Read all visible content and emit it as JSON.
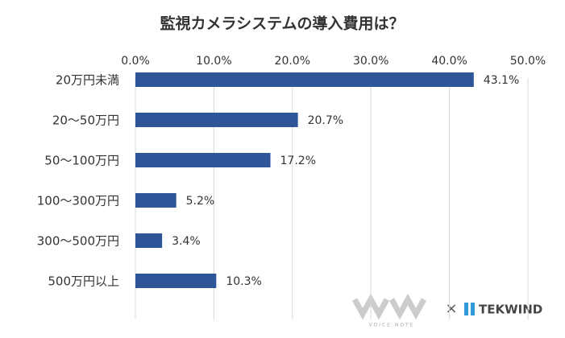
{
  "chart_data": {
    "type": "bar",
    "orientation": "horizontal",
    "title": "監視カメラシステムの導入費用は？",
    "categories": [
      "20万円未満",
      "20〜50万円",
      "50〜100万円",
      "100〜300万円",
      "300〜500万円",
      "500万円以上"
    ],
    "values": [
      43.1,
      20.7,
      17.2,
      5.2,
      3.4,
      10.3
    ],
    "value_labels": [
      "43.1%",
      "20.7%",
      "17.2%",
      "5.2%",
      "3.4%",
      "10.3%"
    ],
    "color": "#2e5597",
    "xlim": [
      0,
      50
    ],
    "xticks": [
      {
        "value": 0,
        "label": "0.0%"
      },
      {
        "value": 10,
        "label": "10.0%"
      },
      {
        "value": 20,
        "label": "20.0%"
      },
      {
        "value": 30,
        "label": "30.0%"
      },
      {
        "value": 40,
        "label": "40.0%"
      },
      {
        "value": 50,
        "label": "50.0%"
      }
    ],
    "grid": true
  },
  "logos": {
    "left": "VOICE NOTE",
    "separator": "×",
    "right": "TEKWIND"
  }
}
